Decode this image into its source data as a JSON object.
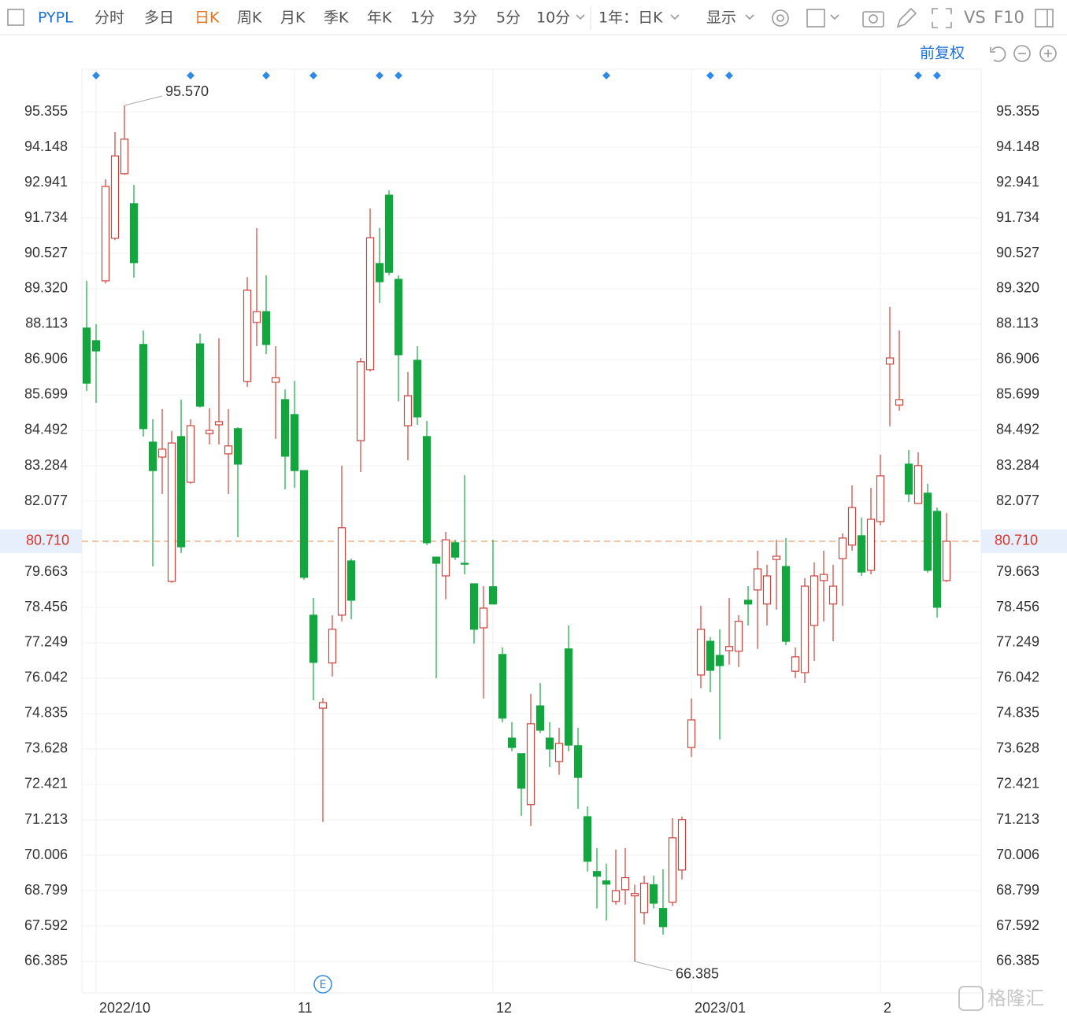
{
  "toolbar": {
    "symbol": "PYPL",
    "periods": [
      "分时",
      "多日",
      "日K",
      "周K",
      "月K",
      "季K",
      "年K",
      "1分",
      "3分",
      "5分",
      "10分"
    ],
    "range": "1年：日K",
    "display": "显示",
    "vs": "VS",
    "f10": "F10",
    "adjust": "前复权"
  },
  "watermark": "格隆汇",
  "chart_data": {
    "type": "candlestick",
    "categories": [
      null,
      "2022/10",
      null,
      null,
      null,
      null,
      null,
      null,
      null,
      null,
      null,
      null,
      null,
      null,
      null,
      null,
      null,
      null,
      null,
      null,
      null,
      null,
      "11",
      null,
      null,
      null,
      null,
      null,
      null,
      null,
      null,
      null,
      null,
      null,
      null,
      null,
      null,
      null,
      null,
      null,
      null,
      null,
      null,
      "12",
      null,
      null,
      null,
      null,
      null,
      null,
      null,
      null,
      null,
      null,
      null,
      null,
      null,
      null,
      null,
      null,
      null,
      null,
      null,
      null,
      "2023/01",
      null,
      null,
      null,
      null,
      null,
      null,
      null,
      null,
      null,
      null,
      null,
      null,
      null,
      null,
      null,
      null,
      null,
      null,
      null,
      "2",
      null,
      null,
      null,
      null,
      null,
      null,
      null
    ],
    "open": [
      87.98,
      87.55,
      89.59,
      91.04,
      93.24,
      92.22,
      87.42,
      84.09,
      83.58,
      79.34,
      84.28,
      82.72,
      87.44,
      84.38,
      84.68,
      83.69,
      84.55,
      86.16,
      88.17,
      88.54,
      86.13,
      85.54,
      85.03,
      83.12,
      78.19,
      75.02,
      76.56,
      78.19,
      80.04,
      84.14,
      86.56,
      90.18,
      92.51,
      89.64,
      84.65,
      86.88,
      84.28,
      80.17,
      79.53,
      80.66,
      79.96,
      79.26,
      77.76,
      79.16,
      76.85,
      74.0,
      73.47,
      71.73,
      75.1,
      74.0,
      73.2,
      77.04,
      73.74,
      71.32,
      69.45,
      69.13,
      68.43,
      68.83,
      68.62,
      68.05,
      69.0,
      68.19,
      68.4,
      69.5,
      73.68,
      76.15,
      77.3,
      76.82,
      76.98,
      76.96,
      78.7,
      79.05,
      78.57,
      80.09,
      79.85,
      76.28,
      76.23,
      77.84,
      79.37,
      78.57,
      80.12,
      80.58,
      80.9,
      79.72,
      81.38,
      86.75,
      85.35,
      83.34,
      82.0,
      82.35,
      81.73,
      79.37
    ],
    "high": [
      89.59,
      88.11,
      93.05,
      94.66,
      95.57,
      92.86,
      87.9,
      84.87,
      85.22,
      84.47,
      85.54,
      84.87,
      87.79,
      85.24,
      87.63,
      85.22,
      84.6,
      89.72,
      91.39,
      89.78,
      87.36,
      85.89,
      86.18,
      83.12,
      78.78,
      75.37,
      78.19,
      83.29,
      80.12,
      86.96,
      92.06,
      91.39,
      92.67,
      89.78,
      86.48,
      87.36,
      84.81,
      80.17,
      81.03,
      80.76,
      82.96,
      79.26,
      79.18,
      80.76,
      77.09,
      74.54,
      73.47,
      75.51,
      75.88,
      74.54,
      74.35,
      77.84,
      74.35,
      71.67,
      70.25,
      69.72,
      70.2,
      70.25,
      69.0,
      69.31,
      69.31,
      69.53,
      71.27,
      71.32,
      75.35,
      78.51,
      77.44,
      77.71,
      78.78,
      78.19,
      79.18,
      80.39,
      79.91,
      80.76,
      80.82,
      77.09,
      79.45,
      79.99,
      80.39,
      79.91,
      80.98,
      82.62,
      81.52,
      82.53,
      83.66,
      88.7,
      87.9,
      83.82,
      83.74,
      82.67,
      81.86,
      81.68
    ],
    "low": [
      85.83,
      85.43,
      89.5,
      90.98,
      93.21,
      89.7,
      84.28,
      79.85,
      82.32,
      79.29,
      80.31,
      82.67,
      85.27,
      84.01,
      84.01,
      82.32,
      80.85,
      85.97,
      87.36,
      87.09,
      84.2,
      82.48,
      82.53,
      79.4,
      75.29,
      71.14,
      76.1,
      77.98,
      78.05,
      83.07,
      86.5,
      88.84,
      89.78,
      85.48,
      83.47,
      84.68,
      80.58,
      76.04,
      78.73,
      80.07,
      79.58,
      77.22,
      75.35,
      78.57,
      74.54,
      73.55,
      71.35,
      71.0,
      74.17,
      73.01,
      72.75,
      73.55,
      71.59,
      69.45,
      68.19,
      67.78,
      68.32,
      68.32,
      66.385,
      67.65,
      68.19,
      67.3,
      68.27,
      69.18,
      73.36,
      75.7,
      75.56,
      73.95,
      76.5,
      76.42,
      77.84,
      77.04,
      77.84,
      78.38,
      77.17,
      76.04,
      75.88,
      76.63,
      77.98,
      77.3,
      78.51,
      80.39,
      79.53,
      79.58,
      81.25,
      84.63,
      85.16,
      82.05,
      82.0,
      79.64,
      78.11,
      79.32
    ],
    "close": [
      86.1,
      87.2,
      92.81,
      93.85,
      94.42,
      90.21,
      84.55,
      83.12,
      83.85,
      84.06,
      80.52,
      84.65,
      85.32,
      84.49,
      84.79,
      83.96,
      83.34,
      89.27,
      88.54,
      87.42,
      86.29,
      83.61,
      83.12,
      79.48,
      76.58,
      75.21,
      77.71,
      81.17,
      78.7,
      86.83,
      91.06,
      89.56,
      89.88,
      87.07,
      85.67,
      84.95,
      80.66,
      79.96,
      80.76,
      80.17,
      79.93,
      77.71,
      78.43,
      78.57,
      74.68,
      73.68,
      72.29,
      74.49,
      74.27,
      73.63,
      73.82,
      73.76,
      72.66,
      69.8,
      69.29,
      69.02,
      68.8,
      69.24,
      68.7,
      69.05,
      68.37,
      67.57,
      70.6,
      71.22,
      74.62,
      77.71,
      76.31,
      76.47,
      77.12,
      77.98,
      78.57,
      79.77,
      79.53,
      80.2,
      77.3,
      76.77,
      79.18,
      79.53,
      79.58,
      79.18,
      80.82,
      81.86,
      79.66,
      81.46,
      82.94,
      86.96,
      85.54,
      82.32,
      83.29,
      79.72,
      78.46,
      80.71
    ],
    "up_color": "#d0413a",
    "down_color": "#13a63f",
    "grid": true,
    "ylim": [
      65.312,
      96.804
    ],
    "yticks": [
      95.355,
      94.148,
      92.941,
      91.734,
      90.527,
      {
        "value": 89.32,
        "label": "89.320"
      },
      88.113,
      86.906,
      85.699,
      84.492,
      83.284,
      82.077,
      79.663,
      78.456,
      77.249,
      76.042,
      74.835,
      73.628,
      72.421,
      71.213,
      70.006,
      68.799,
      67.592,
      66.385
    ],
    "current_price": {
      "value": 80.71,
      "label": "80.710"
    },
    "annotations": [
      {
        "value": 95.57,
        "label": "95.570"
      },
      {
        "value": 66.385,
        "label": "66.385"
      }
    ],
    "event_markers": [
      1,
      11,
      19,
      24,
      31,
      33,
      55,
      66,
      68,
      88,
      90
    ],
    "earnings_marker": {
      "index": 25,
      "label": "E"
    }
  }
}
